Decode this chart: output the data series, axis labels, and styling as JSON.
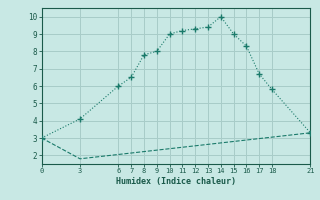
{
  "line1_x": [
    0,
    3,
    6,
    7,
    8,
    9,
    10,
    11,
    12,
    13,
    14,
    15,
    16,
    17,
    18,
    21
  ],
  "line1_y": [
    3.0,
    4.1,
    6.0,
    6.5,
    7.8,
    8.0,
    9.0,
    9.2,
    9.3,
    9.4,
    10.0,
    9.0,
    8.3,
    6.7,
    5.8,
    3.3
  ],
  "line2_x": [
    0,
    3,
    21
  ],
  "line2_y": [
    3.0,
    1.8,
    3.3
  ],
  "line_color": "#1a7a6a",
  "bg_color": "#c8e8e4",
  "grid_color": "#a8ccc8",
  "xlabel": "Humidex (Indice chaleur)",
  "xticks": [
    0,
    3,
    6,
    7,
    8,
    9,
    10,
    11,
    12,
    13,
    14,
    15,
    16,
    17,
    18,
    21
  ],
  "yticks": [
    2,
    3,
    4,
    5,
    6,
    7,
    8,
    9,
    10
  ],
  "xlim": [
    0,
    21
  ],
  "ylim": [
    1.5,
    10.5
  ],
  "font_color": "#1a5a4a",
  "font_family": "monospace"
}
